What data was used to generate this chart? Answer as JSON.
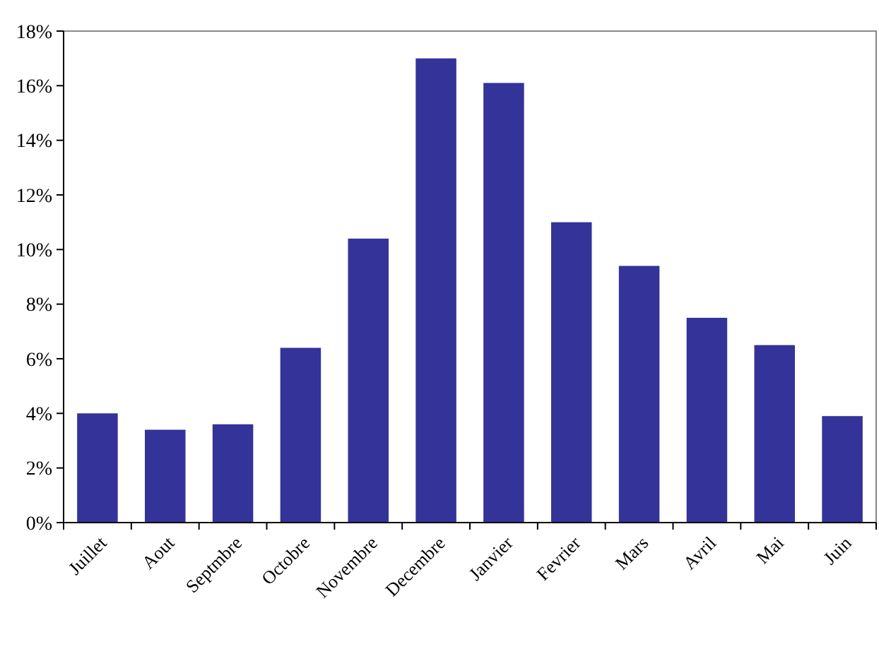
{
  "chart_data": {
    "type": "bar",
    "categories": [
      "Juillet",
      "Aout",
      "Septmbre",
      "Octobre",
      "Novembre",
      "Decembre",
      "Janvier",
      "Fevrier",
      "Mars",
      "Avril",
      "Mai",
      "Juin"
    ],
    "values": [
      4.0,
      3.4,
      3.6,
      6.4,
      10.4,
      17.0,
      16.1,
      11.0,
      9.4,
      7.5,
      6.5,
      3.9
    ],
    "color": "#333399",
    "ylim": [
      0,
      18
    ],
    "yticks": [
      {
        "value": 0,
        "label": "0%"
      },
      {
        "value": 2,
        "label": "2%"
      },
      {
        "value": 4,
        "label": "4%"
      },
      {
        "value": 6,
        "label": "6%"
      },
      {
        "value": 8,
        "label": "8%"
      },
      {
        "value": 10,
        "label": "10%"
      },
      {
        "value": 12,
        "label": "12%"
      },
      {
        "value": 14,
        "label": "14%"
      },
      {
        "value": 16,
        "label": "16%"
      },
      {
        "value": 18,
        "label": "18%"
      }
    ],
    "grid": false
  }
}
